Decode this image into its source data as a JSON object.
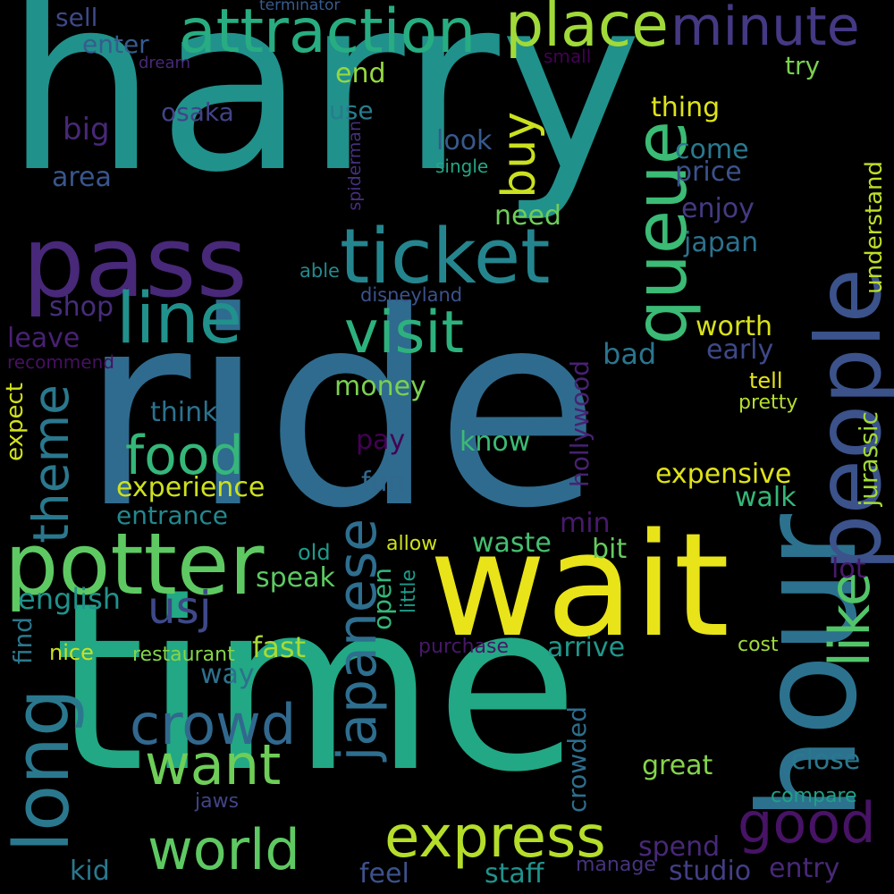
{
  "words": [
    {
      "text": "harry",
      "color": "#21918c"
    },
    {
      "text": "ride",
      "color": "#2f6b8e"
    },
    {
      "text": "time",
      "color": "#22a884"
    },
    {
      "text": "wait",
      "color": "#e8e419"
    },
    {
      "text": "pass",
      "color": "#482878"
    },
    {
      "text": "hour",
      "color": "#2c728e"
    },
    {
      "text": "potter",
      "color": "#5ec962"
    },
    {
      "text": "people",
      "color": "#3b528b"
    },
    {
      "text": "ticket",
      "color": "#25858e"
    },
    {
      "text": "attraction",
      "color": "#27ad81"
    },
    {
      "text": "queue",
      "color": "#3bbb75"
    },
    {
      "text": "place",
      "color": "#a0da39"
    },
    {
      "text": "minute",
      "color": "#443983"
    },
    {
      "text": "line",
      "color": "#21918c"
    },
    {
      "text": "visit",
      "color": "#2db27d"
    },
    {
      "text": "long",
      "color": "#2a788e"
    },
    {
      "text": "express",
      "color": "#b5de2b"
    },
    {
      "text": "japanese",
      "color": "#2e6e8e"
    },
    {
      "text": "crowd",
      "color": "#31688e"
    },
    {
      "text": "want",
      "color": "#6ece58"
    },
    {
      "text": "world",
      "color": "#5ec962"
    },
    {
      "text": "food",
      "color": "#35b779"
    },
    {
      "text": "theme",
      "color": "#2a788e"
    },
    {
      "text": "good",
      "color": "#471365"
    },
    {
      "text": "like",
      "color": "#52c569"
    },
    {
      "text": "usj",
      "color": "#3e4989"
    },
    {
      "text": "buy",
      "color": "#cae11f"
    },
    {
      "text": "close",
      "color": "#2a788e"
    },
    {
      "text": "sell",
      "color": "#3e4989"
    },
    {
      "text": "enter",
      "color": "#365c8d"
    },
    {
      "text": "dream",
      "color": "#482878"
    },
    {
      "text": "terminator",
      "color": "#375b8d"
    },
    {
      "text": "small",
      "color": "#440154"
    },
    {
      "text": "end",
      "color": "#95d840"
    },
    {
      "text": "try",
      "color": "#7ad151"
    },
    {
      "text": "use",
      "color": "#287c8e"
    },
    {
      "text": "thing",
      "color": "#dde318"
    },
    {
      "text": "osaka",
      "color": "#414487"
    },
    {
      "text": "big",
      "color": "#482878"
    },
    {
      "text": "spiderman",
      "color": "#46307e"
    },
    {
      "text": "look",
      "color": "#38598c"
    },
    {
      "text": "come",
      "color": "#2a788e"
    },
    {
      "text": "price",
      "color": "#3b528b"
    },
    {
      "text": "area",
      "color": "#39568c"
    },
    {
      "text": "single",
      "color": "#22a884"
    },
    {
      "text": "understand",
      "color": "#bddf26"
    },
    {
      "text": "enjoy",
      "color": "#443a83"
    },
    {
      "text": "need",
      "color": "#6ece58"
    },
    {
      "text": "japan",
      "color": "#2c728e"
    },
    {
      "text": "able",
      "color": "#238a8d"
    },
    {
      "text": "disneyland",
      "color": "#3b528b"
    },
    {
      "text": "shop",
      "color": "#472d7b"
    },
    {
      "text": "worth",
      "color": "#d8e219"
    },
    {
      "text": "leave",
      "color": "#482173"
    },
    {
      "text": "recommend",
      "color": "#471063"
    },
    {
      "text": "early",
      "color": "#3e4989"
    },
    {
      "text": "bad",
      "color": "#2b758e"
    },
    {
      "text": "tell",
      "color": "#e5e419"
    },
    {
      "text": "pretty",
      "color": "#b5de2b"
    },
    {
      "text": "money",
      "color": "#7ad151"
    },
    {
      "text": "think",
      "color": "#2c728e"
    },
    {
      "text": "hollywood",
      "color": "#482173"
    },
    {
      "text": "jurassic",
      "color": "#a2da37"
    },
    {
      "text": "expect",
      "color": "#d2e21b"
    },
    {
      "text": "pay",
      "color": "#440154"
    },
    {
      "text": "know",
      "color": "#3bbb75"
    },
    {
      "text": "expensive",
      "color": "#dfe318"
    },
    {
      "text": "experience",
      "color": "#cde11d"
    },
    {
      "text": "fun",
      "color": "#31688e"
    },
    {
      "text": "walk",
      "color": "#35b779"
    },
    {
      "text": "entrance",
      "color": "#23888e"
    },
    {
      "text": "min",
      "color": "#481a6c"
    },
    {
      "text": "waste",
      "color": "#44bf70"
    },
    {
      "text": "bit",
      "color": "#65cb5e"
    },
    {
      "text": "allow",
      "color": "#d0e11c"
    },
    {
      "text": "old",
      "color": "#1f9a8a"
    },
    {
      "text": "speak",
      "color": "#5ec962"
    },
    {
      "text": "lot",
      "color": "#481a6c"
    },
    {
      "text": "english",
      "color": "#20928c"
    },
    {
      "text": "open",
      "color": "#35b779"
    },
    {
      "text": "little",
      "color": "#1e9c89"
    },
    {
      "text": "find",
      "color": "#2a788e"
    },
    {
      "text": "nice",
      "color": "#cde11d"
    },
    {
      "text": "restaurant",
      "color": "#86d549"
    },
    {
      "text": "fast",
      "color": "#a8db34"
    },
    {
      "text": "purchase",
      "color": "#481769"
    },
    {
      "text": "arrive",
      "color": "#1f988b"
    },
    {
      "text": "cost",
      "color": "#a0da39"
    },
    {
      "text": "way",
      "color": "#2d708e"
    },
    {
      "text": "crowded",
      "color": "#2e6e8e"
    },
    {
      "text": "great",
      "color": "#84d44b"
    },
    {
      "text": "compare",
      "color": "#1fa187"
    },
    {
      "text": "jaws",
      "color": "#414487"
    },
    {
      "text": "spend",
      "color": "#482878"
    },
    {
      "text": "kid",
      "color": "#2a788e"
    },
    {
      "text": "feel",
      "color": "#3b528b"
    },
    {
      "text": "staff",
      "color": "#20928c"
    },
    {
      "text": "manage",
      "color": "#46337f"
    },
    {
      "text": "studio",
      "color": "#433e85"
    },
    {
      "text": "entry",
      "color": "#482878"
    }
  ]
}
